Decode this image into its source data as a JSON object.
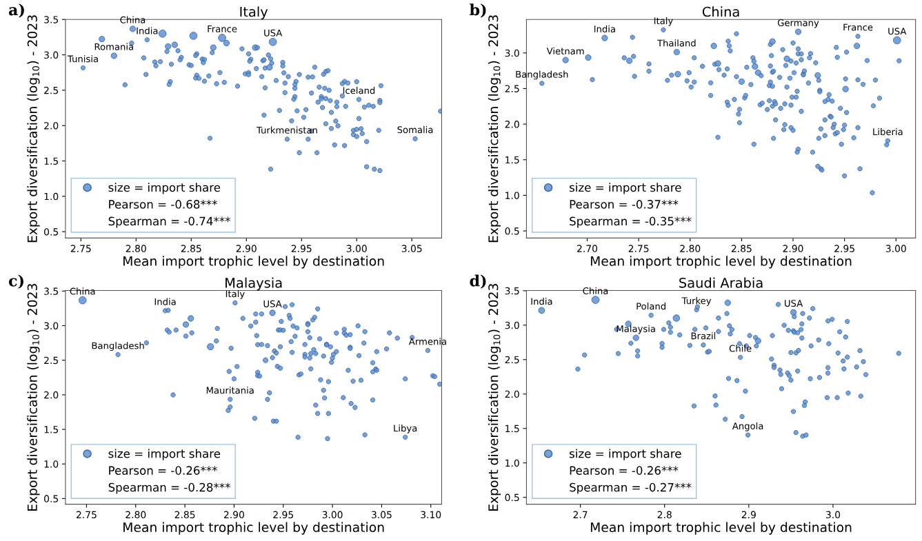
{
  "chart_data": [
    {
      "type": "bubble",
      "title": "Italy",
      "xlabel": "Mean import trophic level by destination",
      "ylabel": "Export diversification (log$_{10}$) - 2023",
      "legend": "bottom left",
      "grid": false,
      "marker": "circle",
      "xlim": [
        2.736,
        3.077
      ],
      "ylim": [
        0.41,
        3.5
      ],
      "xticks": [
        {
          "value": 2.75,
          "label": "2.75"
        },
        {
          "value": 2.8,
          "label": "2.80"
        },
        {
          "value": 2.85,
          "label": "2.85"
        },
        {
          "value": 2.9,
          "label": "2.90"
        },
        {
          "value": 2.95,
          "label": "2.95"
        },
        {
          "value": 3.0,
          "label": "3.00"
        },
        {
          "value": 3.05,
          "label": "3.05"
        }
      ],
      "yticks": [
        {
          "value": 0.5,
          "label": "0.5"
        },
        {
          "value": 1,
          "label": "1.0"
        },
        {
          "value": 1.5,
          "label": "1.5"
        },
        {
          "value": 2,
          "label": "2.0"
        },
        {
          "value": 2.5,
          "label": "2.5"
        },
        {
          "value": 3,
          "label": "3.0"
        },
        {
          "value": 3.5,
          "label": "3.5"
        }
      ],
      "series": [
        {
          "name": "size = import share",
          "color": "#5b93d3",
          "x": [
            2.752,
            2.769,
            2.78,
            2.797,
            2.796,
            2.79,
            2.81,
            2.824,
            2.807,
            2.809,
            2.817,
            2.818,
            2.822,
            2.829,
            2.828,
            2.835,
            2.838,
            2.832,
            2.841,
            2.84,
            2.831,
            2.83,
            2.852,
            2.855,
            2.854,
            2.848,
            2.85,
            2.86,
            2.862,
            2.861,
            2.869,
            2.87,
            2.855,
            2.854,
            2.857,
            2.862,
            2.866,
            2.876,
            2.873,
            2.88,
            2.867,
            2.878,
            2.882,
            2.892,
            2.896,
            2.902,
            2.908,
            2.91,
            2.904,
            2.903,
            2.909,
            2.899,
            2.902,
            2.902,
            2.915,
            2.916,
            2.917,
            2.92,
            2.922,
            2.923,
            2.921,
            2.924,
            2.914,
            2.917,
            2.927,
            2.916,
            2.922,
            2.933,
            2.933,
            2.934,
            2.938,
            2.935,
            2.935,
            2.945,
            2.944,
            2.944,
            2.948,
            2.944,
            2.943,
            2.93,
            2.946,
            2.941,
            2.954,
            2.952,
            2.937,
            2.959,
            2.956,
            2.948,
            2.964,
            2.962,
            2.956,
            2.96,
            2.959,
            2.966,
            2.97,
            2.972,
            2.974,
            2.971,
            2.975,
            2.968,
            2.968,
            2.972,
            2.965,
            2.976,
            2.969,
            2.982,
            2.982,
            2.977,
            2.972,
            2.981,
            2.983,
            2.977,
            2.98,
            2.989,
            2.989,
            2.987,
            2.992,
            3.0,
            2.987,
            2.99,
            3.002,
            3.007,
            3.011,
            3.015,
            3.021,
            3.021,
            3.022,
            3.002,
            2.997,
            3.0,
            3.004,
            3.005,
            2.997,
            3.0,
            3.02,
            3.009,
            3.009,
            3.016,
            3.021,
            3.053,
            3.076
          ],
          "values": [
            2.816,
            3.223,
            2.987,
            3.367,
            3.166,
            2.577,
            3.213,
            3.3,
            2.957,
            2.722,
            2.9,
            2.846,
            2.903,
            3.119,
            3.048,
            3.142,
            3.058,
            2.867,
            2.964,
            2.93,
            2.621,
            2.581,
            3.27,
            3.014,
            2.991,
            2.86,
            2.85,
            2.94,
            2.934,
            2.89,
            3.031,
            3.102,
            2.712,
            2.672,
            2.668,
            2.628,
            2.702,
            2.749,
            2.591,
            2.611,
            1.821,
            3.24,
            3.166,
            2.557,
            3.085,
            3.014,
            3.102,
            3.102,
            2.937,
            2.91,
            2.806,
            2.732,
            2.749,
            2.719,
            2.917,
            2.93,
            2.813,
            2.998,
            2.944,
            2.883,
            2.823,
            3.183,
            2.692,
            2.534,
            2.638,
            2.147,
            1.384,
            2.893,
            2.843,
            2.745,
            2.692,
            2.601,
            2.466,
            2.624,
            2.581,
            2.527,
            2.722,
            2.409,
            2.372,
            2.214,
            2.208,
            2.067,
            2.225,
            2.117,
            1.808,
            1.922,
            1.808,
            1.616,
            1.616,
            2.826,
            2.685,
            2.688,
            2.46,
            2.544,
            2.725,
            2.766,
            2.776,
            2.527,
            2.5,
            2.409,
            2.379,
            2.382,
            2.332,
            2.352,
            2.255,
            2.332,
            2.268,
            2.187,
            2.026,
            2.063,
            1.996,
            1.959,
            1.727,
            1.717,
            2.624,
            2.594,
            2.601,
            2.621,
            2.419,
            2.272,
            2.369,
            2.262,
            2.288,
            2.272,
            2.356,
            2.325,
            2.564,
            2.1,
            1.932,
            1.946,
            1.956,
            1.888,
            1.872,
            1.845,
            1.932,
            1.774,
            1.418,
            1.384,
            1.364,
            1.814,
            2.204
          ],
          "sizes": [
            0.35,
            0.6,
            0.6,
            0.6,
            0.35,
            0.35,
            0.35,
            1,
            0.35,
            0.35,
            0.35,
            0.35,
            0.35,
            0.6,
            0.35,
            0.6,
            0.35,
            0.35,
            0.35,
            0.35,
            0.35,
            0.35,
            1,
            0.35,
            0.35,
            0.35,
            0.35,
            0.35,
            0.35,
            0.35,
            0.35,
            0.6,
            0.35,
            0.35,
            0.35,
            0.35,
            0.35,
            0.35,
            0.35,
            0.35,
            0.35,
            1,
            0.6,
            0.35,
            0.35,
            0.35,
            0.6,
            0.35,
            0.35,
            0.35,
            0.35,
            0.35,
            0.35,
            0.35,
            0.35,
            0.35,
            0.35,
            0.35,
            0.35,
            0.35,
            0.6,
            1,
            0.35,
            0.35,
            0.35,
            0.35,
            0.35,
            0.35,
            0.35,
            0.35,
            0.35,
            0.35,
            0.35,
            0.35,
            0.35,
            0.35,
            0.35,
            0.35,
            0.35,
            0.35,
            0.35,
            0.35,
            0.35,
            0.35,
            0.35,
            0.35,
            0.35,
            0.35,
            0.35,
            0.35,
            0.35,
            0.35,
            0.35,
            0.35,
            0.35,
            0.35,
            0.35,
            0.35,
            0.35,
            0.35,
            0.35,
            0.35,
            0.35,
            0.35,
            0.35,
            0.35,
            0.35,
            0.35,
            0.35,
            0.35,
            0.35,
            0.35,
            0.35,
            0.35,
            0.35,
            0.35,
            0.35,
            0.35,
            0.35,
            0.35,
            0.35,
            0.35,
            0.35,
            0.35,
            0.35,
            0.35,
            0.35,
            0.35,
            0.35,
            0.35,
            0.35,
            0.35,
            0.35,
            0.35,
            0.35,
            0.35,
            0.35,
            0.35,
            0.35,
            0.35,
            0.35
          ]
        }
      ],
      "annotations": [
        "a)",
        "Pearson = -0.68***",
        "Spearman = -0.74***",
        {
          "text": "Tunisia",
          "x": 2.752,
          "y": 2.816
        },
        {
          "text": "Romania",
          "x": 2.78,
          "y": 2.987
        },
        {
          "text": "China",
          "x": 2.797,
          "y": 3.367
        },
        {
          "text": "India",
          "x": 2.81,
          "y": 3.213
        },
        {
          "text": "France",
          "x": 2.878,
          "y": 3.24
        },
        {
          "text": "USA",
          "x": 2.924,
          "y": 3.183
        },
        {
          "text": "Turkmenistan",
          "x": 2.937,
          "y": 1.808
        },
        {
          "text": "Iceland",
          "x": 3.002,
          "y": 2.369
        },
        {
          "text": "Somalia",
          "x": 3.053,
          "y": 1.814
        }
      ]
    },
    {
      "type": "bubble",
      "title": "China",
      "xlabel": "Mean import trophic level by destination",
      "ylabel": "Export diversification (log$_{10}$) - 2023",
      "legend": "bottom left",
      "grid": false,
      "marker": "circle",
      "xlim": [
        2.641,
        3.019
      ],
      "ylim": [
        0.4,
        3.47
      ],
      "xticks": [
        {
          "value": 2.7,
          "label": "2.70"
        },
        {
          "value": 2.75,
          "label": "2.75"
        },
        {
          "value": 2.8,
          "label": "2.80"
        },
        {
          "value": 2.85,
          "label": "2.85"
        },
        {
          "value": 2.9,
          "label": "2.90"
        },
        {
          "value": 2.95,
          "label": "2.95"
        },
        {
          "value": 3.0,
          "label": "3.00"
        }
      ],
      "yticks": [
        {
          "value": 0.5,
          "label": "0.5"
        },
        {
          "value": 1,
          "label": "1.0"
        },
        {
          "value": 1.5,
          "label": "1.5"
        },
        {
          "value": 2,
          "label": "2.0"
        },
        {
          "value": 2.5,
          "label": "2.5"
        },
        {
          "value": 3,
          "label": "3.0"
        }
      ],
      "series": [
        {
          "name": "size = import share",
          "color": "#5b93d3",
          "x": [
            2.656,
            2.679,
            2.701,
            2.705,
            2.717,
            2.744,
            2.736,
            2.741,
            2.745,
            2.746,
            2.76,
            2.76,
            2.774,
            2.787,
            2.778,
            2.782,
            2.788,
            2.799,
            2.804,
            2.797,
            2.804,
            2.801,
            2.812,
            2.82,
            2.82,
            2.823,
            2.824,
            2.827,
            2.828,
            2.833,
            2.836,
            2.837,
            2.838,
            2.839,
            2.845,
            2.845,
            2.85,
            2.836,
            2.837,
            2.843,
            2.848,
            2.847,
            2.848,
            2.827,
            2.853,
            2.854,
            2.855,
            2.859,
            2.861,
            2.862,
            2.863,
            2.866,
            2.869,
            2.862,
            2.868,
            2.87,
            2.875,
            2.877,
            2.88,
            2.882,
            2.883,
            2.883,
            2.881,
            2.877,
            2.88,
            2.878,
            2.878,
            2.88,
            2.881,
            2.879,
            2.878,
            2.88,
            2.89,
            2.887,
            2.888,
            2.892,
            2.894,
            2.894,
            2.893,
            2.898,
            2.897,
            2.9,
            2.901,
            2.903,
            2.905,
            2.905,
            2.905,
            2.908,
            2.908,
            2.91,
            2.911,
            2.91,
            2.915,
            2.917,
            2.916,
            2.922,
            2.904,
            2.903,
            2.899,
            2.898,
            2.908,
            2.892,
            2.891,
            2.898,
            2.9,
            2.905,
            2.904,
            2.919,
            2.924,
            2.925,
            2.926,
            2.926,
            2.935,
            2.934,
            2.931,
            2.938,
            2.931,
            2.936,
            2.937,
            2.927,
            2.94,
            2.939,
            2.941,
            2.943,
            2.925,
            2.931,
            2.924,
            2.927,
            2.928,
            2.942,
            2.943,
            2.952,
            2.951,
            2.951,
            2.946,
            2.952,
            2.95,
            2.949,
            2.947,
            2.959,
            2.963,
            2.965,
            2.95,
            2.962,
            2.963,
            2.963,
            2.968,
            2.972,
            2.98,
            2.984,
            2.978,
            2.992,
            2.991,
            2.977,
            3.001,
            3.003
          ],
          "values": [
            2.573,
            2.9,
            2.935,
            2.625,
            3.21,
            3.22,
            2.932,
            2.89,
            2.952,
            2.671,
            2.845,
            2.744,
            3.325,
            3.012,
            2.615,
            2.688,
            2.702,
            2.723,
            2.932,
            2.608,
            2.591,
            2.521,
            2.813,
            2.58,
            2.403,
            3.099,
            2.841,
            2.852,
            2.765,
            2.688,
            2.775,
            3.165,
            3.099,
            3.029,
            3.269,
            2.667,
            2.598,
            2.309,
            2.264,
            2.347,
            2.208,
            2.142,
            2.02,
            1.815,
            2.368,
            2.403,
            2.799,
            2.556,
            2.932,
            2.883,
            2.81,
            2.723,
            2.681,
            1.718,
            2.271,
            2.295,
            2.205,
            2.33,
            2.253,
            2.316,
            2.285,
            2.059,
            1.801,
            2.542,
            2.532,
            2.591,
            2.817,
            2.73,
            2.744,
            2.963,
            3.119,
            3.161,
            3.046,
            2.657,
            2.222,
            2.285,
            2.521,
            2.918,
            2.824,
            2.886,
            2.646,
            3.14,
            2.723,
            2.859,
            3.057,
            3.297,
            2.987,
            2.987,
            2.904,
            2.705,
            2.747,
            2.692,
            2.577,
            2.991,
            2.932,
            2.862,
            2.462,
            2.379,
            2.379,
            2.267,
            2.18,
            1.993,
            1.923,
            1.951,
            1.913,
            1.648,
            1.606,
            1.606,
            2.685,
            2.615,
            2.476,
            2.455,
            2.413,
            2.347,
            2.319,
            2.323,
            2.059,
            2.111,
            2.1,
            1.933,
            1.999,
            1.951,
            1.864,
            1.881,
            1.801,
            1.839,
            1.408,
            1.373,
            1.356,
            3.078,
            2.939,
            3.012,
            2.636,
            2.493,
            2.222,
            2.163,
            1.986,
            1.923,
            1.718,
            1.808,
            1.951,
            1.373,
            1.273,
            3.099,
            3.234,
            2.622,
            2.559,
            2.893,
            2.619,
            2.365,
            2.257,
            1.766,
            1.711,
            1.036,
            3.178,
            2.89
          ],
          "sizes": [
            0.35,
            0.6,
            0.6,
            0.35,
            0.6,
            0.35,
            0.35,
            0.6,
            0.35,
            0.35,
            0.35,
            0.35,
            0.35,
            0.6,
            0.35,
            0.35,
            0.6,
            0.35,
            0.35,
            0.35,
            0.35,
            0.35,
            0.35,
            0.35,
            0.35,
            0.6,
            0.35,
            0.6,
            0.35,
            0.35,
            0.35,
            0.35,
            0.35,
            0.35,
            0.35,
            0.35,
            0.6,
            0.35,
            0.35,
            0.35,
            0.35,
            0.35,
            0.35,
            0.35,
            0.35,
            0.35,
            0.35,
            0.35,
            0.35,
            0.35,
            0.6,
            0.6,
            0.35,
            0.35,
            0.35,
            0.35,
            0.35,
            0.35,
            0.35,
            0.35,
            0.35,
            0.35,
            0.35,
            0.35,
            0.35,
            0.35,
            0.35,
            0.35,
            0.35,
            0.35,
            0.35,
            0.6,
            0.35,
            0.35,
            0.35,
            0.35,
            0.35,
            0.6,
            0.35,
            0.35,
            0.35,
            0.35,
            0.35,
            0.35,
            0.35,
            0.6,
            0.35,
            0.35,
            0.35,
            0.35,
            0.35,
            0.35,
            0.35,
            0.35,
            0.35,
            0.35,
            0.35,
            0.35,
            0.35,
            0.35,
            0.35,
            0.35,
            0.35,
            0.35,
            0.35,
            0.35,
            0.35,
            0.35,
            0.6,
            0.35,
            0.35,
            0.35,
            0.35,
            0.35,
            0.35,
            0.35,
            0.35,
            0.35,
            0.35,
            0.35,
            0.35,
            0.35,
            0.35,
            0.35,
            0.35,
            0.35,
            0.35,
            0.35,
            0.35,
            0.35,
            0.35,
            0.35,
            0.35,
            0.6,
            0.35,
            0.35,
            0.35,
            0.35,
            0.35,
            0.35,
            0.35,
            0.35,
            0.35,
            0.6,
            0.35,
            0.35,
            0.35,
            0.35,
            0.35,
            0.35,
            0.35,
            0.35,
            0.35,
            0.35,
            1,
            0.35
          ]
        }
      ],
      "annotations": [
        "b)",
        "Pearson = -0.37***",
        "Spearman = -0.35***",
        {
          "text": "Bangladesh",
          "x": 2.656,
          "y": 2.573
        },
        {
          "text": "Vietnam",
          "x": 2.679,
          "y": 2.9
        },
        {
          "text": "India",
          "x": 2.717,
          "y": 3.21
        },
        {
          "text": "Italy",
          "x": 2.774,
          "y": 3.325
        },
        {
          "text": "Thailand",
          "x": 2.787,
          "y": 3.012
        },
        {
          "text": "Germany",
          "x": 2.905,
          "y": 3.297
        },
        {
          "text": "France",
          "x": 2.963,
          "y": 3.234
        },
        {
          "text": "USA",
          "x": 3.001,
          "y": 3.178
        },
        {
          "text": "Liberia",
          "x": 2.992,
          "y": 1.766
        }
      ]
    },
    {
      "type": "bubble",
      "title": "Malaysia",
      "xlabel": "Mean import trophic level by destination",
      "ylabel": "Export diversification (log$_{10}$) - 2023",
      "legend": "bottom left",
      "grid": false,
      "marker": "circle",
      "xlim": [
        2.7286,
        3.111
      ],
      "ylim": [
        0.418,
        3.508
      ],
      "xticks": [
        {
          "value": 2.75,
          "label": "2.75"
        },
        {
          "value": 2.8,
          "label": "2.80"
        },
        {
          "value": 2.85,
          "label": "2.85"
        },
        {
          "value": 2.9,
          "label": "2.90"
        },
        {
          "value": 2.95,
          "label": "2.95"
        },
        {
          "value": 3.0,
          "label": "3.00"
        },
        {
          "value": 3.05,
          "label": "3.05"
        },
        {
          "value": 3.1,
          "label": "3.10"
        }
      ],
      "yticks": [
        {
          "value": 0.5,
          "label": "0.5"
        },
        {
          "value": 1,
          "label": "1.0"
        },
        {
          "value": 1.5,
          "label": "1.5"
        },
        {
          "value": 2,
          "label": "2.0"
        },
        {
          "value": 2.5,
          "label": "2.5"
        },
        {
          "value": 3,
          "label": "3.0"
        },
        {
          "value": 3.5,
          "label": "3.5"
        }
      ],
      "series": [
        {
          "name": "size = import share",
          "color": "#5b93d3",
          "x": [
            2.746,
            2.782,
            2.811,
            2.83,
            2.833,
            2.832,
            2.834,
            2.841,
            2.851,
            2.856,
            2.851,
            2.857,
            2.838,
            2.883,
            2.882,
            2.876,
            2.897,
            2.901,
            2.909,
            2.922,
            2.928,
            2.922,
            2.917,
            2.923,
            2.924,
            2.928,
            2.934,
            2.939,
            2.952,
            2.959,
            2.956,
            2.957,
            2.948,
            2.945,
            2.947,
            2.95,
            2.96,
            2.964,
            2.962,
            2.958,
            2.947,
            2.941,
            2.943,
            2.939,
            2.932,
            2.944,
            2.947,
            2.903,
            2.895,
            2.9,
            2.924,
            2.924,
            2.926,
            2.896,
            2.896,
            2.894,
            2.921,
            2.94,
            2.943,
            2.936,
            2.934,
            2.959,
            2.972,
            2.972,
            2.972,
            2.977,
            2.978,
            2.981,
            2.983,
            2.977,
            2.975,
            2.975,
            2.975,
            2.98,
            2.982,
            2.985,
            2.987,
            2.991,
            2.994,
            2.994,
            2.998,
            3.001,
            3.0,
            2.999,
            3.004,
            3.004,
            3.012,
            3.012,
            3.014,
            3.018,
            3.026,
            3.033,
            3.018,
            3.018,
            3.032,
            3.027,
            3.045,
            3.055,
            3.058,
            3.066,
            3.081,
            3.097,
            3.041,
            3.041,
            3.044,
            3.045,
            3.016,
            2.978,
            2.966,
            2.968,
            2.988,
            2.996,
            3.021,
            3.029,
            3.074,
            3.102,
            3.104,
            3.109,
            2.991,
            2.992,
            3.011,
            3.019,
            3.023,
            3.041,
            2.983,
            2.985,
            2.996,
            2.965,
            2.995,
            3.033,
            3.074
          ],
          "values": [
            3.367,
            2.581,
            2.752,
            3.216,
            3.222,
            2.937,
            2.907,
            2.937,
            3.017,
            3.105,
            2.849,
            2.896,
            1.999,
            2.96,
            2.779,
            2.695,
            2.674,
            3.33,
            3.105,
            3.169,
            3.169,
            3.051,
            2.994,
            2.856,
            2.725,
            2.728,
            2.711,
            3.185,
            3.276,
            3.303,
            3.148,
            3.105,
            3.061,
            2.937,
            2.937,
            2.933,
            2.994,
            2.967,
            2.846,
            2.769,
            2.695,
            2.634,
            2.604,
            2.537,
            2.5,
            2.412,
            2.385,
            2.409,
            2.338,
            2.231,
            2.325,
            2.278,
            2.271,
            1.935,
            1.824,
            1.774,
            1.66,
            1.619,
            1.619,
            2.029,
            1.935,
            2.614,
            2.728,
            2.584,
            2.547,
            2.533,
            2.597,
            2.654,
            2.597,
            2.826,
            2.913,
            3.031,
            3.014,
            3.084,
            3.121,
            3.242,
            2.809,
            2.56,
            2.731,
            2.721,
            2.695,
            2.584,
            2.53,
            2.469,
            2.624,
            2.893,
            2.947,
            2.893,
            2.863,
            2.87,
            2.997,
            2.913,
            2.688,
            2.671,
            2.748,
            2.567,
            2.624,
            2.664,
            2.896,
            2.819,
            2.829,
            2.641,
            2.463,
            2.332,
            2.372,
            2.355,
            2.355,
            2.376,
            2.288,
            2.302,
            2.217,
            2.19,
            2.197,
            2.211,
            2.231,
            2.275,
            2.264,
            2.154,
            2.066,
            1.955,
            1.959,
            1.875,
            1.817,
            1.925,
            1.851,
            1.73,
            1.73,
            1.387,
            1.367,
            1.421,
            1.387
          ],
          "sizes": [
            1,
            0.35,
            0.35,
            0.35,
            0.35,
            0.35,
            0.35,
            0.35,
            0.6,
            0.6,
            0.35,
            0.35,
            0.35,
            0.35,
            0.35,
            0.75,
            0.35,
            0.35,
            0.35,
            0.35,
            0.35,
            0.35,
            0.35,
            0.35,
            0.35,
            0.35,
            0.35,
            0.6,
            0.35,
            0.35,
            0.35,
            0.35,
            0.35,
            0.35,
            0.35,
            0.35,
            0.35,
            0.35,
            0.35,
            0.35,
            0.35,
            0.35,
            0.35,
            0.35,
            0.45,
            0.35,
            0.35,
            0.35,
            0.35,
            0.35,
            0.35,
            0.35,
            0.35,
            0.35,
            0.35,
            0.35,
            0.35,
            0.35,
            0.35,
            0.35,
            0.35,
            0.35,
            0.35,
            0.35,
            0.35,
            0.35,
            0.35,
            0.35,
            0.35,
            0.35,
            0.35,
            0.35,
            0.35,
            0.35,
            0.35,
            0.35,
            0.35,
            0.35,
            0.35,
            0.35,
            0.35,
            0.35,
            0.35,
            0.35,
            0.35,
            0.35,
            0.35,
            0.35,
            0.35,
            0.35,
            0.35,
            0.35,
            0.35,
            0.35,
            0.35,
            0.35,
            0.35,
            0.35,
            0.35,
            0.35,
            0.35,
            0.35,
            0.35,
            0.35,
            0.35,
            0.35,
            0.35,
            0.35,
            0.35,
            0.35,
            0.35,
            0.35,
            0.35,
            0.35,
            0.35,
            0.35,
            0.35,
            0.35,
            0.35,
            0.35,
            0.35,
            0.35,
            0.35,
            0.35,
            0.35,
            0.35,
            0.35,
            0.35,
            0.35,
            0.35,
            0.35
          ]
        }
      ],
      "annotations": [
        "c)",
        "Pearson = -0.26***",
        "Spearman = -0.28***",
        {
          "text": "China",
          "x": 2.746,
          "y": 3.367
        },
        {
          "text": "Bangladesh",
          "x": 2.782,
          "y": 2.581
        },
        {
          "text": "India",
          "x": 2.83,
          "y": 3.216
        },
        {
          "text": "Italy",
          "x": 2.901,
          "y": 3.33
        },
        {
          "text": "USA",
          "x": 2.939,
          "y": 3.185
        },
        {
          "text": "Mauritania",
          "x": 2.896,
          "y": 1.935
        },
        {
          "text": "Armenia",
          "x": 3.097,
          "y": 2.641
        },
        {
          "text": "Libya",
          "x": 3.074,
          "y": 1.387
        }
      ]
    },
    {
      "type": "bubble",
      "title": "Saudi Arabia",
      "xlabel": "Mean import trophic level by destination",
      "ylabel": "Export diversification (log$_{10}$) - 2023",
      "legend": "bottom left",
      "grid": false,
      "marker": "circle",
      "xlim": [
        2.636,
        3.098
      ],
      "ylim": [
        0.4,
        3.503
      ],
      "xticks": [
        {
          "value": 2.7,
          "label": "2.7"
        },
        {
          "value": 2.8,
          "label": "2.8"
        },
        {
          "value": 2.9,
          "label": "2.9"
        },
        {
          "value": 3.0,
          "label": "3.0"
        }
      ],
      "yticks": [
        {
          "value": 0.5,
          "label": "0.5"
        },
        {
          "value": 1,
          "label": "1.0"
        },
        {
          "value": 1.5,
          "label": "1.5"
        },
        {
          "value": 2,
          "label": "2.0"
        },
        {
          "value": 2.5,
          "label": "2.5"
        },
        {
          "value": 3,
          "label": "3.0"
        },
        {
          "value": 3.5,
          "label": "3.5"
        }
      ],
      "series": [
        {
          "name": "size = import share",
          "color": "#5b93d3",
          "x": [
            2.654,
            2.718,
            2.705,
            2.697,
            2.743,
            2.757,
            2.766,
            2.76,
            2.745,
            2.768,
            2.768,
            2.784,
            2.814,
            2.805,
            2.807,
            2.799,
            2.807,
            2.818,
            2.797,
            2.797,
            2.838,
            2.839,
            2.836,
            2.849,
            2.83,
            2.846,
            2.851,
            2.853,
            2.864,
            2.864,
            2.875,
            2.874,
            2.877,
            2.88,
            2.878,
            2.889,
            2.897,
            2.89,
            2.901,
            2.908,
            2.911,
            2.909,
            2.876,
            2.886,
            2.896,
            2.86,
            2.861,
            2.835,
            2.872,
            2.892,
            2.899,
            2.928,
            2.935,
            2.953,
            2.954,
            2.964,
            2.976,
            2.972,
            2.942,
            2.947,
            2.953,
            2.954,
            2.958,
            2.962,
            2.963,
            2.963,
            2.95,
            2.956,
            2.959,
            2.974,
            2.983,
            2.995,
            2.994,
            2.999,
            3.017,
            3.008,
            3.015,
            3.006,
            3.012,
            3.017,
            3.032,
            3.036,
            3.028,
            3.039,
            3.013,
            2.994,
            2.994,
            2.984,
            2.973,
            2.958,
            2.927,
            2.93,
            2.93,
            2.937,
            2.938,
            2.946,
            2.948,
            2.95,
            2.939,
            2.967,
            2.966,
            2.953,
            2.956,
            2.964,
            2.968,
            2.993,
            3.005,
            3.018,
            3.033,
            3.078
          ],
          "values": [
            3.214,
            3.367,
            2.567,
            2.362,
            2.939,
            3.019,
            2.817,
            2.737,
            2.588,
            2.626,
            2.553,
            3.144,
            3.103,
            3.033,
            2.97,
            2.939,
            2.897,
            2.859,
            2.734,
            2.678,
            3.224,
            3.266,
            2.939,
            2.96,
            2.706,
            2.713,
            2.609,
            2.619,
            3.103,
            2.908,
            3.325,
            3.169,
            2.991,
            2.936,
            2.873,
            2.731,
            2.699,
            2.532,
            2.849,
            2.821,
            2.772,
            2.699,
            2.226,
            2.195,
            2.042,
            1.972,
            1.84,
            1.826,
            1.635,
            1.673,
            1.405,
            2.849,
            3.301,
            3.186,
            3.123,
            3.169,
            3.241,
            3.103,
            2.998,
            2.925,
            2.918,
            2.897,
            2.89,
            2.936,
            3.019,
            2.814,
            2.602,
            2.598,
            2.633,
            2.699,
            2.786,
            2.731,
            3.061,
            3.085,
            3.054,
            2.904,
            2.828,
            2.595,
            2.48,
            2.536,
            2.63,
            2.47,
            2.393,
            2.282,
            2.365,
            2.383,
            2.303,
            2.24,
            2.223,
            2.334,
            2.508,
            2.418,
            2.386,
            2.348,
            2.285,
            2.306,
            2.268,
            2.202,
            2.077,
            1.885,
            1.833,
            1.746,
            1.44,
            1.388,
            1.405,
            1.948,
            1.948,
            2.014,
            1.969,
            2.591
          ],
          "sizes": [
            0.7,
            1,
            0.35,
            0.35,
            0.35,
            0.6,
            0.6,
            0.35,
            0.35,
            0.35,
            0.35,
            0.35,
            0.8,
            0.35,
            0.35,
            0.35,
            0.35,
            0.35,
            0.35,
            0.35,
            0.35,
            0.35,
            0.35,
            0.35,
            0.35,
            0.35,
            0.35,
            0.35,
            0.35,
            0.35,
            0.6,
            0.35,
            0.35,
            0.35,
            0.35,
            0.35,
            0.35,
            0.35,
            0.35,
            0.35,
            0.6,
            0.35,
            0.35,
            0.35,
            0.35,
            0.35,
            0.35,
            0.35,
            0.35,
            0.35,
            0.35,
            0.35,
            0.35,
            0.6,
            0.35,
            0.35,
            0.35,
            0.35,
            0.35,
            0.35,
            0.35,
            0.35,
            0.35,
            0.35,
            0.35,
            0.35,
            0.35,
            0.35,
            0.35,
            0.35,
            0.35,
            0.35,
            0.35,
            0.35,
            0.35,
            0.35,
            0.35,
            0.35,
            0.35,
            0.35,
            0.35,
            0.35,
            0.35,
            0.35,
            0.35,
            0.35,
            0.35,
            0.35,
            0.35,
            0.35,
            0.35,
            0.35,
            0.35,
            0.35,
            0.35,
            0.35,
            0.35,
            0.35,
            0.35,
            0.35,
            0.35,
            0.35,
            0.35,
            0.35,
            0.35,
            0.35,
            0.35,
            0.35,
            0.35,
            0.35
          ]
        }
      ],
      "annotations": [
        "d)",
        "Pearson = -0.26***",
        "Spearman = -0.27***",
        {
          "text": "India",
          "x": 2.654,
          "y": 3.214
        },
        {
          "text": "China",
          "x": 2.718,
          "y": 3.367
        },
        {
          "text": "Poland",
          "x": 2.784,
          "y": 3.144
        },
        {
          "text": "Malaysia",
          "x": 2.766,
          "y": 2.817
        },
        {
          "text": "Turkey",
          "x": 2.838,
          "y": 3.224
        },
        {
          "text": "Brazil",
          "x": 2.846,
          "y": 2.713
        },
        {
          "text": "Chile",
          "x": 2.89,
          "y": 2.532
        },
        {
          "text": "USA",
          "x": 2.953,
          "y": 3.186
        },
        {
          "text": "Angola",
          "x": 2.899,
          "y": 1.405
        }
      ]
    }
  ]
}
